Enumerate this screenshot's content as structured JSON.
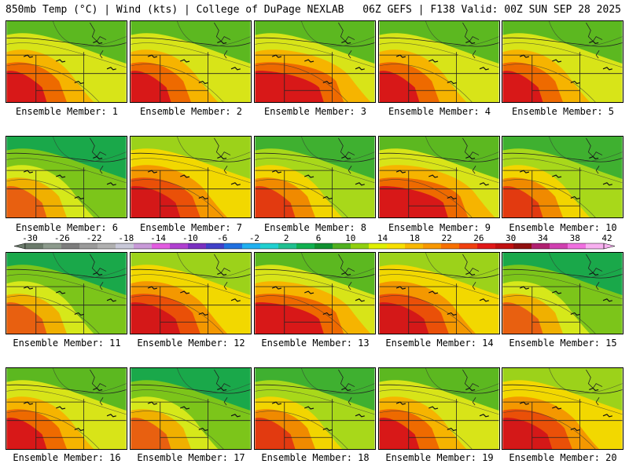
{
  "header": {
    "left": "850mb Temp (°C) | Wind (kts) | College of DuPage NEXLAB",
    "right": "06Z GEFS | F138 Valid: 00Z SUN SEP 28 2025"
  },
  "members": [
    {
      "label": "Ensemble Member: 1",
      "pattern": "southwest-hot"
    },
    {
      "label": "Ensemble Member: 2",
      "pattern": "southwest-hot"
    },
    {
      "label": "Ensemble Member: 3",
      "pattern": "central-hot"
    },
    {
      "label": "Ensemble Member: 4",
      "pattern": "southwest-hot"
    },
    {
      "label": "Ensemble Member: 5",
      "pattern": "southwest-hot"
    },
    {
      "label": "Ensemble Member: 6",
      "pattern": "cool"
    },
    {
      "label": "Ensemble Member: 7",
      "pattern": "widespread-hot"
    },
    {
      "label": "Ensemble Member: 8",
      "pattern": "southwest-warm"
    },
    {
      "label": "Ensemble Member: 9",
      "pattern": "central-hot"
    },
    {
      "label": "Ensemble Member: 10",
      "pattern": "southwest-warm"
    },
    {
      "label": "Ensemble Member: 11",
      "pattern": "cool"
    },
    {
      "label": "Ensemble Member: 12",
      "pattern": "widespread-hot"
    },
    {
      "label": "Ensemble Member: 13",
      "pattern": "central-hot"
    },
    {
      "label": "Ensemble Member: 14",
      "pattern": "widespread-hot"
    },
    {
      "label": "Ensemble Member: 15",
      "pattern": "cool"
    },
    {
      "label": "Ensemble Member: 16",
      "pattern": "southwest-hot"
    },
    {
      "label": "Ensemble Member: 17",
      "pattern": "cool"
    },
    {
      "label": "Ensemble Member: 18",
      "pattern": "southwest-warm"
    },
    {
      "label": "Ensemble Member: 19",
      "pattern": "southwest-hot"
    },
    {
      "label": "Ensemble Member: 20",
      "pattern": "widespread-hot"
    }
  ],
  "colorbar": {
    "ticks": [
      "-30",
      "-26",
      "-22",
      "-18",
      "-14",
      "-10",
      "-6",
      "-2",
      "2",
      "6",
      "10",
      "14",
      "18",
      "22",
      "26",
      "30",
      "34",
      "38",
      "42"
    ],
    "colors": [
      "#6b7a6b",
      "#8c9a8c",
      "#7d7d7d",
      "#9a9a9a",
      "#b0b0b0",
      "#c8c8d8",
      "#c89ad8",
      "#e25ce0",
      "#b040d0",
      "#7a30c0",
      "#4040c8",
      "#2070e0",
      "#20b0f0",
      "#20d0d0",
      "#20c090",
      "#10b050",
      "#109030",
      "#50b020",
      "#90d010",
      "#e0f000",
      "#f8e000",
      "#f8b800",
      "#f89800",
      "#f87000",
      "#f04010",
      "#e01818",
      "#c01010",
      "#901010",
      "#b02070",
      "#d040b0",
      "#f070e0",
      "#f8b0f0"
    ]
  }
}
